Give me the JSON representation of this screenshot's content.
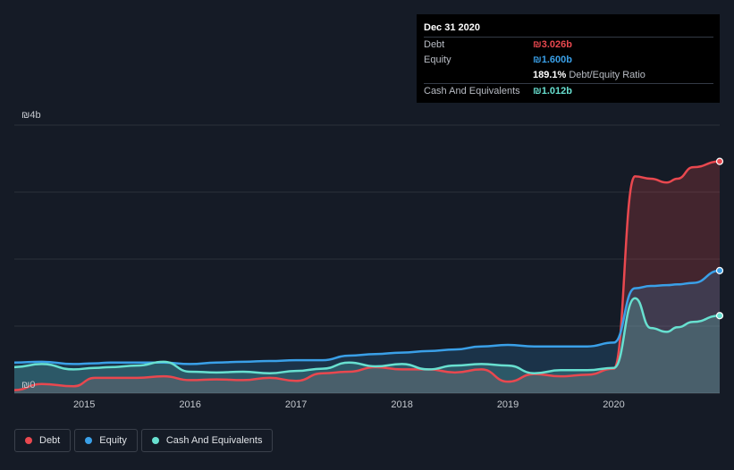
{
  "tooltip": {
    "date": "Dec 31 2020",
    "rows": [
      {
        "label": "Debt",
        "value": "₪3.026b",
        "color": "#e9484f"
      },
      {
        "label": "Equity",
        "value": "₪1.600b",
        "color": "#3aa0e8"
      },
      {
        "label": "",
        "value": "189.1%",
        "sub": "Debt/Equity Ratio",
        "color": "#ffffff"
      },
      {
        "label": "Cash And Equivalents",
        "value": "₪1.012b",
        "color": "#68e0d0"
      }
    ]
  },
  "legend": [
    {
      "label": "Debt",
      "color": "#e9484f"
    },
    {
      "label": "Equity",
      "color": "#3aa0e8"
    },
    {
      "label": "Cash And Equivalents",
      "color": "#68e0d0"
    }
  ],
  "chart_data": {
    "type": "area",
    "title": "",
    "xlabel": "",
    "ylabel": "",
    "ylim": [
      0,
      3.5
    ],
    "y_tick_labels": [
      {
        "value": 3.5,
        "label": "₪4b"
      },
      {
        "value": 0,
        "label": "₪0"
      }
    ],
    "x_tick_labels": [
      "2015",
      "2016",
      "2017",
      "2018",
      "2019",
      "2020"
    ],
    "x_tick_values": [
      2015,
      2016,
      2017,
      2018,
      2019,
      2020
    ],
    "xlim": [
      2014.34,
      2021.0
    ],
    "grid": true,
    "series": [
      {
        "name": "Debt",
        "color": "#e9484f",
        "x": [
          2014.34,
          2014.6,
          2014.9,
          2015.1,
          2015.25,
          2015.5,
          2015.75,
          2016.0,
          2016.25,
          2016.5,
          2016.75,
          2017.0,
          2017.25,
          2017.5,
          2017.75,
          2018.0,
          2018.25,
          2018.5,
          2018.75,
          2019.0,
          2019.25,
          2019.5,
          2019.75,
          2020.0,
          2020.2,
          2020.35,
          2020.5,
          2020.6,
          2020.75,
          2021.0
        ],
        "values": [
          0.04,
          0.12,
          0.09,
          0.2,
          0.2,
          0.2,
          0.22,
          0.17,
          0.18,
          0.17,
          0.2,
          0.16,
          0.26,
          0.28,
          0.34,
          0.31,
          0.31,
          0.27,
          0.31,
          0.15,
          0.25,
          0.22,
          0.24,
          0.32,
          2.83,
          2.8,
          2.75,
          2.8,
          2.95,
          3.026
        ]
      },
      {
        "name": "Equity",
        "color": "#3aa0e8",
        "x": [
          2014.34,
          2014.6,
          2014.9,
          2015.1,
          2015.25,
          2015.5,
          2015.75,
          2016.0,
          2016.25,
          2016.5,
          2016.75,
          2017.0,
          2017.25,
          2017.5,
          2017.75,
          2018.0,
          2018.25,
          2018.5,
          2018.75,
          2019.0,
          2019.25,
          2019.5,
          2019.75,
          2020.0,
          2020.2,
          2020.35,
          2020.5,
          2020.6,
          2020.75,
          2021.0
        ],
        "values": [
          0.4,
          0.41,
          0.38,
          0.39,
          0.4,
          0.4,
          0.4,
          0.38,
          0.4,
          0.41,
          0.42,
          0.43,
          0.43,
          0.49,
          0.51,
          0.53,
          0.55,
          0.57,
          0.61,
          0.63,
          0.61,
          0.61,
          0.61,
          0.66,
          1.37,
          1.4,
          1.41,
          1.42,
          1.44,
          1.6
        ]
      },
      {
        "name": "Cash And Equivalents",
        "color": "#68e0d0",
        "x": [
          2014.34,
          2014.6,
          2014.9,
          2015.1,
          2015.25,
          2015.5,
          2015.75,
          2016.0,
          2016.25,
          2016.5,
          2016.75,
          2017.0,
          2017.25,
          2017.5,
          2017.75,
          2018.0,
          2018.25,
          2018.5,
          2018.75,
          2019.0,
          2019.25,
          2019.5,
          2019.75,
          2020.0,
          2020.2,
          2020.35,
          2020.5,
          2020.6,
          2020.75,
          2021.0
        ],
        "values": [
          0.34,
          0.38,
          0.31,
          0.33,
          0.34,
          0.36,
          0.41,
          0.28,
          0.27,
          0.28,
          0.26,
          0.29,
          0.32,
          0.4,
          0.35,
          0.38,
          0.31,
          0.36,
          0.38,
          0.36,
          0.26,
          0.3,
          0.3,
          0.33,
          1.24,
          0.85,
          0.8,
          0.86,
          0.93,
          1.012
        ]
      }
    ]
  }
}
